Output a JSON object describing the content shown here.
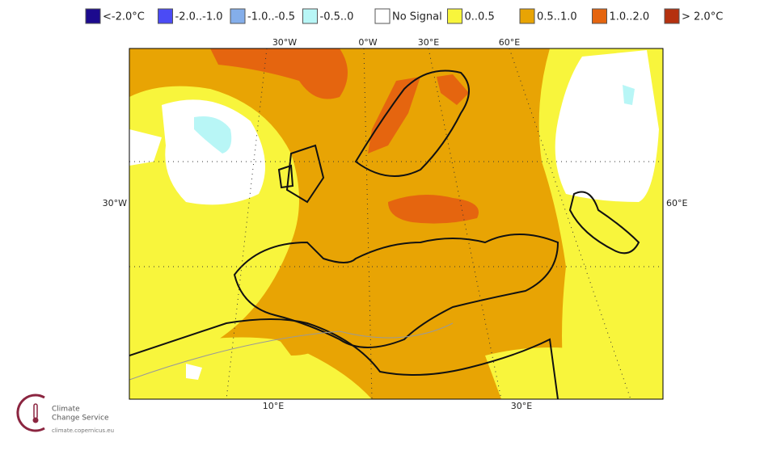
{
  "legend": [
    {
      "label": "<-2.0°C",
      "color": "#1c0a8e"
    },
    {
      "label": "-2.0..-1.0",
      "color": "#4b4bf5"
    },
    {
      "label": "-1.0..-0.5",
      "color": "#84aeea"
    },
    {
      "label": "-0.5..0",
      "color": "#b8f6f6"
    },
    {
      "label": "No Signal",
      "color": "#ffffff"
    },
    {
      "label": "0..0.5",
      "color": "#f8f53c"
    },
    {
      "label": "0.5..1.0",
      "color": "#e8a404"
    },
    {
      "label": "1.0..2.0",
      "color": "#e5650f"
    },
    {
      "label": "> 2.0°C",
      "color": "#b5310f"
    }
  ],
  "map": {
    "top_labels": [
      "30°W",
      "0°W",
      "30°E",
      "60°E"
    ],
    "left_label": "30°W",
    "right_label": "60°E",
    "bottom_labels": [
      "10°E",
      "30°E"
    ]
  },
  "logo": {
    "line1": "Climate",
    "line2": "Change Service",
    "url": "climate.copernicus.eu"
  }
}
